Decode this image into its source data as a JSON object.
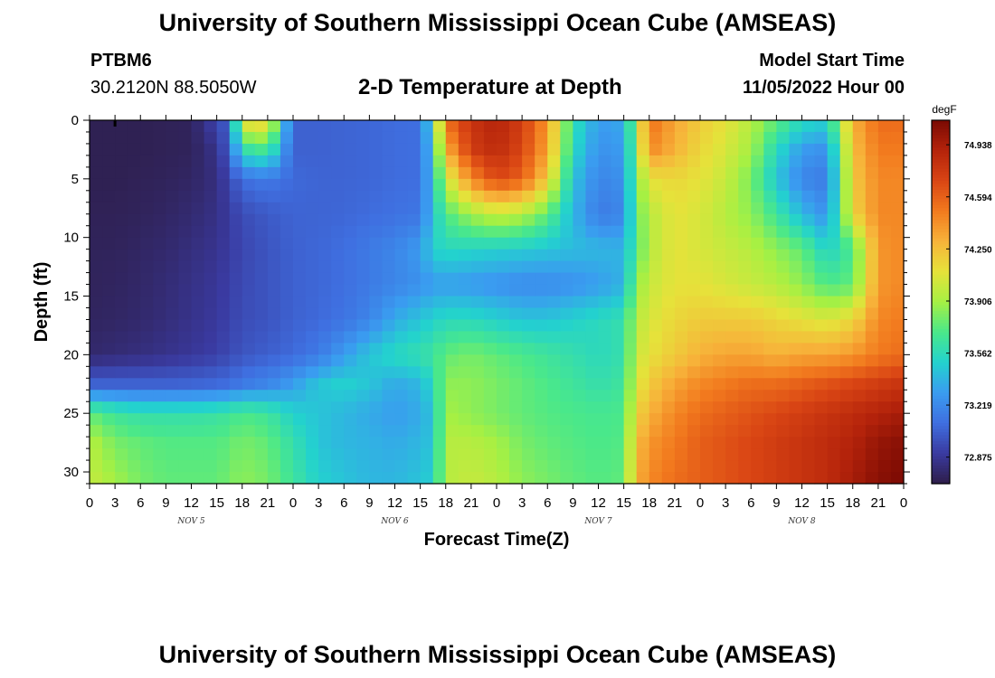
{
  "header": {
    "title": "University of Southern Mississippi Ocean Cube (AMSEAS)",
    "station_id": "PTBM6",
    "station_coords": "30.2120N  88.5050W",
    "chart_title": "2-D Temperature at Depth",
    "model_start_label": "Model Start Time",
    "model_start_value": "11/05/2022 Hour 00"
  },
  "footer": {
    "title": "University of Southern Mississippi Ocean Cube (AMSEAS)"
  },
  "chart_data": {
    "type": "heatmap",
    "title": "2-D Temperature at Depth",
    "xlabel": "Forecast Time(Z)",
    "ylabel": "Depth (ft)",
    "colorbar_unit": "degF",
    "colorbar_ticks": [
      72.875,
      73.219,
      73.562,
      73.906,
      74.25,
      74.594,
      74.938
    ],
    "colorbar_tick_labels": [
      "72.875",
      "73.219",
      "73.562",
      "73.906",
      "74.250",
      "74.594",
      "74.938"
    ],
    "colorbar_range": [
      72.7,
      75.1
    ],
    "colormap": [
      "#2e1e4a",
      "#3a3aa0",
      "#3f6fe0",
      "#3a9cf0",
      "#23d2ce",
      "#4ae88a",
      "#a6f043",
      "#e6e23a",
      "#f7b33a",
      "#f27a1e",
      "#d94514",
      "#b4230b",
      "#7a0a03"
    ],
    "x_tick_labels": [
      "0",
      "3",
      "6",
      "9",
      "12",
      "15",
      "18",
      "21",
      "0",
      "3",
      "6",
      "9",
      "12",
      "15",
      "18",
      "21",
      "0",
      "3",
      "6",
      "9",
      "12",
      "15",
      "18",
      "21",
      "0",
      "3",
      "6",
      "9",
      "12",
      "15",
      "18",
      "21",
      "0"
    ],
    "x_range_hours": [
      0,
      96
    ],
    "day_labels": [
      {
        "text": "NOV 5",
        "hour": 12
      },
      {
        "text": "NOV 6",
        "hour": 36
      },
      {
        "text": "NOV 7",
        "hour": 60
      },
      {
        "text": "NOV 8",
        "hour": 84
      }
    ],
    "y_ticks": [
      0,
      5,
      10,
      15,
      20,
      25,
      30
    ],
    "y_range_ft": [
      0,
      31
    ],
    "y_inverted": true,
    "hours": [
      0,
      3,
      6,
      9,
      12,
      15,
      16.5,
      18,
      21,
      24,
      27,
      30,
      33,
      36,
      39,
      40.5,
      42,
      45,
      48,
      51,
      54,
      57,
      60,
      63,
      64.5,
      66,
      69,
      72,
      75,
      78,
      81,
      84,
      87,
      90,
      93,
      96
    ],
    "depths_ft": [
      0,
      2.5,
      5,
      8,
      11,
      14,
      17,
      20,
      22.5,
      25,
      27.5,
      31
    ],
    "temperature_degF": [
      [
        72.72,
        72.72,
        72.72,
        72.73,
        72.74,
        72.95,
        73.05,
        74.15,
        74.2,
        73.05,
        73.05,
        73.06,
        73.07,
        73.09,
        73.1,
        73.62,
        74.55,
        74.8,
        74.9,
        74.75,
        74.4,
        73.6,
        73.3,
        73.35,
        73.9,
        74.55,
        74.35,
        74.2,
        74.1,
        73.95,
        73.75,
        73.55,
        73.5,
        74.3,
        74.55,
        74.55
      ],
      [
        72.72,
        72.72,
        72.72,
        72.73,
        72.74,
        72.85,
        73.05,
        73.6,
        73.7,
        73.05,
        73.05,
        73.06,
        73.07,
        73.09,
        73.1,
        73.5,
        74.3,
        74.75,
        74.85,
        74.7,
        74.35,
        73.55,
        73.25,
        73.3,
        73.85,
        74.45,
        74.3,
        74.15,
        74.05,
        73.9,
        73.55,
        73.3,
        73.25,
        74.25,
        74.5,
        74.5
      ],
      [
        72.72,
        72.72,
        72.73,
        72.74,
        72.76,
        72.82,
        72.95,
        73.1,
        73.15,
        73.08,
        73.06,
        73.06,
        73.07,
        73.09,
        73.1,
        73.45,
        74.0,
        74.45,
        74.7,
        74.6,
        74.2,
        73.45,
        73.2,
        73.25,
        73.8,
        74.1,
        74.15,
        74.1,
        74.0,
        73.8,
        73.45,
        73.2,
        73.15,
        74.2,
        74.45,
        74.45
      ],
      [
        72.73,
        72.73,
        72.74,
        72.76,
        72.79,
        72.84,
        72.9,
        72.97,
        73.02,
        73.06,
        73.06,
        73.07,
        73.09,
        73.11,
        73.13,
        73.45,
        73.7,
        73.9,
        74.0,
        73.95,
        73.75,
        73.4,
        73.15,
        73.2,
        73.75,
        73.95,
        74.1,
        74.05,
        73.95,
        73.85,
        73.65,
        73.4,
        73.25,
        74.15,
        74.45,
        74.45
      ],
      [
        72.74,
        72.74,
        72.76,
        72.78,
        72.82,
        72.86,
        72.9,
        72.95,
        73.0,
        73.05,
        73.07,
        73.1,
        73.15,
        73.2,
        73.3,
        73.5,
        73.55,
        73.52,
        73.5,
        73.48,
        73.45,
        73.42,
        73.4,
        73.38,
        73.7,
        73.95,
        74.1,
        74.05,
        74.0,
        73.95,
        73.85,
        73.75,
        73.5,
        73.7,
        74.4,
        74.45
      ],
      [
        72.74,
        72.75,
        72.77,
        72.8,
        72.84,
        72.88,
        72.92,
        72.96,
        73.0,
        73.05,
        73.07,
        73.1,
        73.15,
        73.2,
        73.25,
        73.3,
        73.3,
        73.28,
        73.25,
        73.22,
        73.22,
        73.25,
        73.3,
        73.38,
        73.85,
        74.0,
        74.1,
        74.1,
        74.05,
        74.0,
        73.95,
        73.85,
        73.7,
        73.75,
        74.4,
        74.45
      ],
      [
        72.75,
        72.76,
        72.78,
        72.81,
        72.85,
        72.89,
        72.93,
        72.97,
        73.0,
        73.05,
        73.08,
        73.12,
        73.2,
        73.35,
        73.45,
        73.5,
        73.55,
        73.55,
        73.5,
        73.45,
        73.45,
        73.5,
        73.55,
        73.6,
        73.95,
        74.05,
        74.15,
        74.2,
        74.2,
        74.2,
        74.15,
        74.1,
        74.05,
        74.15,
        74.45,
        74.5
      ],
      [
        72.78,
        72.8,
        72.82,
        72.85,
        72.88,
        72.92,
        72.96,
        73.0,
        73.04,
        73.08,
        73.15,
        73.3,
        73.45,
        73.55,
        73.6,
        73.65,
        73.75,
        73.8,
        73.75,
        73.7,
        73.65,
        73.6,
        73.55,
        73.6,
        74.0,
        74.1,
        74.2,
        74.3,
        74.35,
        74.35,
        74.3,
        74.35,
        74.35,
        74.4,
        74.5,
        74.55
      ],
      [
        73.05,
        73.05,
        73.05,
        73.05,
        73.06,
        73.08,
        73.1,
        73.15,
        73.2,
        73.3,
        73.45,
        73.5,
        73.45,
        73.35,
        73.4,
        73.55,
        73.85,
        73.85,
        73.8,
        73.75,
        73.7,
        73.65,
        73.6,
        73.65,
        74.05,
        74.2,
        74.35,
        74.45,
        74.5,
        74.55,
        74.55,
        74.6,
        74.65,
        74.7,
        74.75,
        74.8
      ],
      [
        73.75,
        73.65,
        73.6,
        73.6,
        73.6,
        73.62,
        73.65,
        73.7,
        73.65,
        73.5,
        73.45,
        73.4,
        73.35,
        73.3,
        73.35,
        73.45,
        73.9,
        73.85,
        73.8,
        73.75,
        73.72,
        73.7,
        73.68,
        73.7,
        74.15,
        74.3,
        74.45,
        74.55,
        74.6,
        74.65,
        74.7,
        74.75,
        74.8,
        74.85,
        74.9,
        74.95
      ],
      [
        73.95,
        73.8,
        73.75,
        73.72,
        73.72,
        73.72,
        73.75,
        73.8,
        73.75,
        73.6,
        73.45,
        73.4,
        73.38,
        73.35,
        73.4,
        73.45,
        73.95,
        73.95,
        73.9,
        73.8,
        73.75,
        73.72,
        73.7,
        73.72,
        74.25,
        74.4,
        74.5,
        74.6,
        74.65,
        74.7,
        74.75,
        74.8,
        74.85,
        74.9,
        75.0,
        75.05
      ],
      [
        74.0,
        73.9,
        73.8,
        73.75,
        73.75,
        73.75,
        73.8,
        73.85,
        73.8,
        73.65,
        73.5,
        73.45,
        73.4,
        73.4,
        73.45,
        73.5,
        73.95,
        74.0,
        73.95,
        73.85,
        73.8,
        73.75,
        73.72,
        73.75,
        74.3,
        74.45,
        74.55,
        74.6,
        74.65,
        74.7,
        74.75,
        74.8,
        74.85,
        74.95,
        75.05,
        75.1
      ]
    ]
  }
}
